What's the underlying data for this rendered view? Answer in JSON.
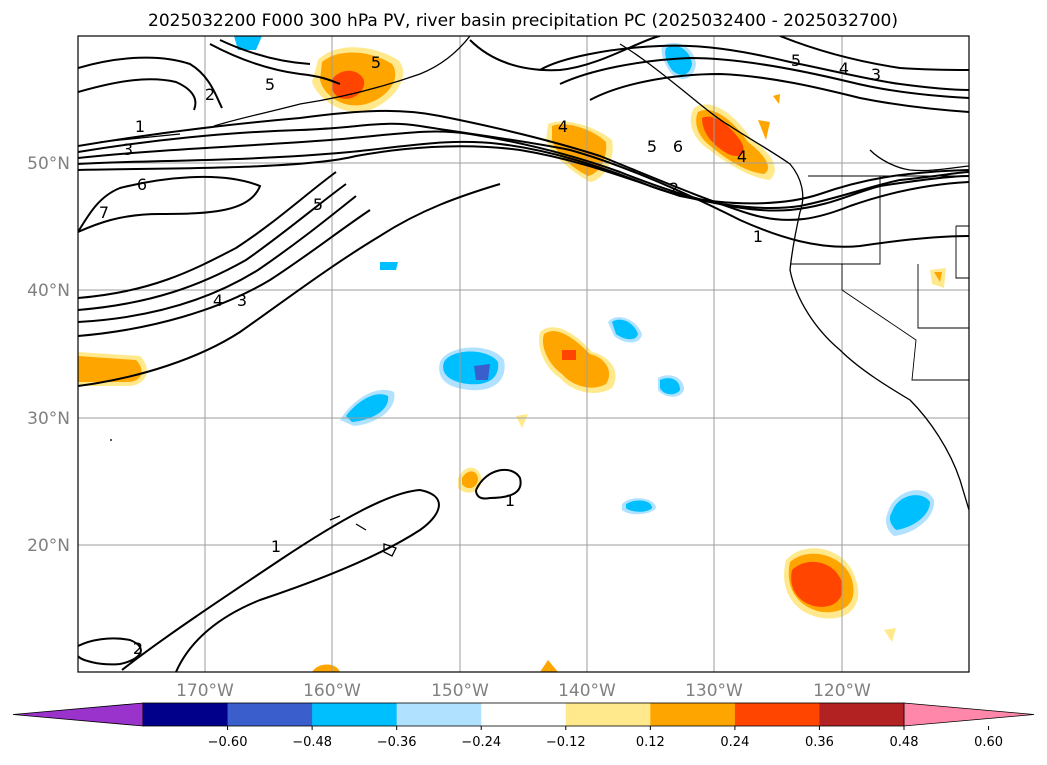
{
  "title": "2025032200 F000 300 hPa PV, river basin precipitation PC (2025032400 - 2025032700)",
  "axes": {
    "lat_labels": [
      "20°N",
      "30°N",
      "40°N",
      "50°N"
    ],
    "lon_labels": [
      "170°W",
      "160°W",
      "150°W",
      "140°W",
      "130°W",
      "120°W"
    ],
    "lon_range": [
      -180,
      -110
    ],
    "lat_range": [
      10,
      60
    ],
    "grid": true
  },
  "colorbar": {
    "orientation": "horizontal",
    "extend": "both",
    "ticks": [
      "−0.60",
      "−0.48",
      "−0.36",
      "−0.24",
      "−0.12",
      "0.12",
      "0.24",
      "0.36",
      "0.48",
      "0.60"
    ],
    "colors": [
      "#9933cc",
      "#00008b",
      "#3a5fcd",
      "#00bfff",
      "#b0e2ff",
      "#ffffff",
      "#ffe98c",
      "#ffa500",
      "#ff4500",
      "#b22222",
      "#ff88aa"
    ]
  },
  "pv_contour_labels": [
    "1",
    "2",
    "3",
    "4",
    "5",
    "6"
  ],
  "contour_label_text": {
    "l1a": "1",
    "l3a": "3",
    "l6a": "6",
    "l5a": "5",
    "l7a": "7",
    "l5b": "5",
    "l4a": "4",
    "l3b": "3",
    "l4b": "4",
    "l5c": "5",
    "l6b": "6",
    "l2a": "2",
    "l1b": "1",
    "l5d": "5",
    "l4c": "4",
    "l3c": "3",
    "l4d": "4",
    "l5e": "5",
    "l1c": "1",
    "l1d": "1",
    "l2b": "2"
  }
}
